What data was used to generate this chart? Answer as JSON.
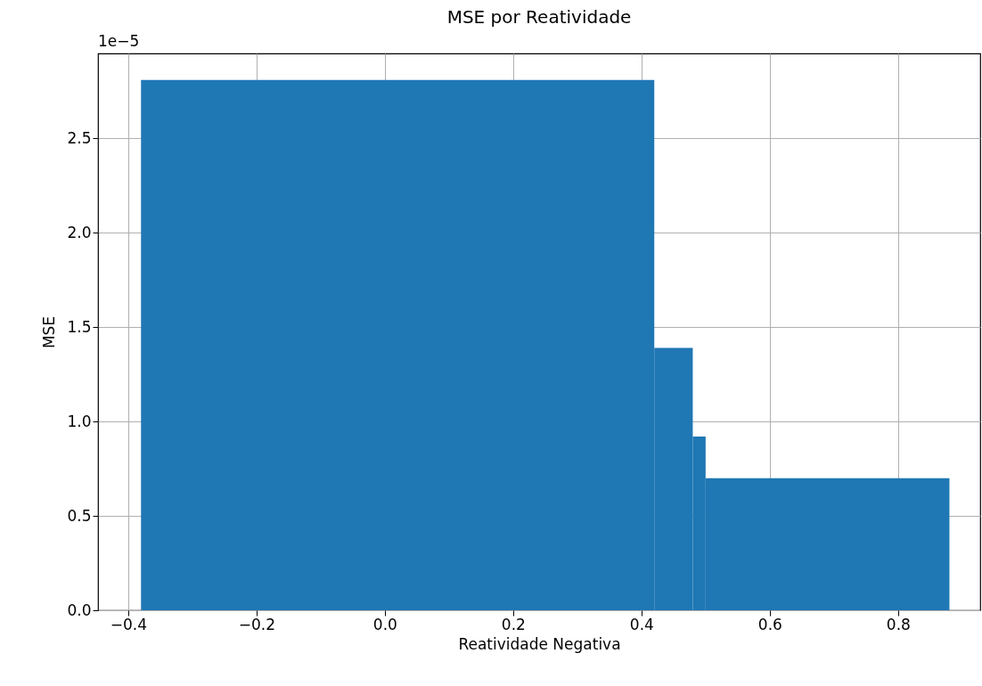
{
  "chart_data": {
    "type": "histogram",
    "title": "MSE por Reatividade",
    "xlabel": "Reatividade Negativa",
    "ylabel": "MSE",
    "bins": [
      -0.38,
      0.42,
      0.48,
      0.5,
      0.88
    ],
    "values": [
      2.81,
      1.39,
      0.92,
      0.7
    ],
    "color": "#1f77b4",
    "xlim": [
      -0.447,
      0.928
    ],
    "xticks": [
      {
        "value": -0.4,
        "label": "−0.4"
      },
      {
        "value": -0.2,
        "label": "−0.2"
      },
      {
        "value": 0,
        "label": "0.0"
      },
      {
        "value": 0.2,
        "label": "0.2"
      },
      {
        "value": 0.4,
        "label": "0.4"
      },
      {
        "value": 0.6,
        "label": "0.6"
      },
      {
        "value": 0.8,
        "label": "0.8"
      }
    ],
    "ylim": [
      0,
      2.95
    ],
    "yticks": [
      {
        "value": 0,
        "label": "0.0"
      },
      {
        "value": 0.5,
        "label": "0.5"
      },
      {
        "value": 1,
        "label": "1.0"
      },
      {
        "value": 1.5,
        "label": "1.5"
      },
      {
        "value": 2,
        "label": "2.0"
      },
      {
        "value": 2.5,
        "label": "2.5"
      }
    ],
    "annotations": [
      "1e−5"
    ],
    "grid": true
  }
}
